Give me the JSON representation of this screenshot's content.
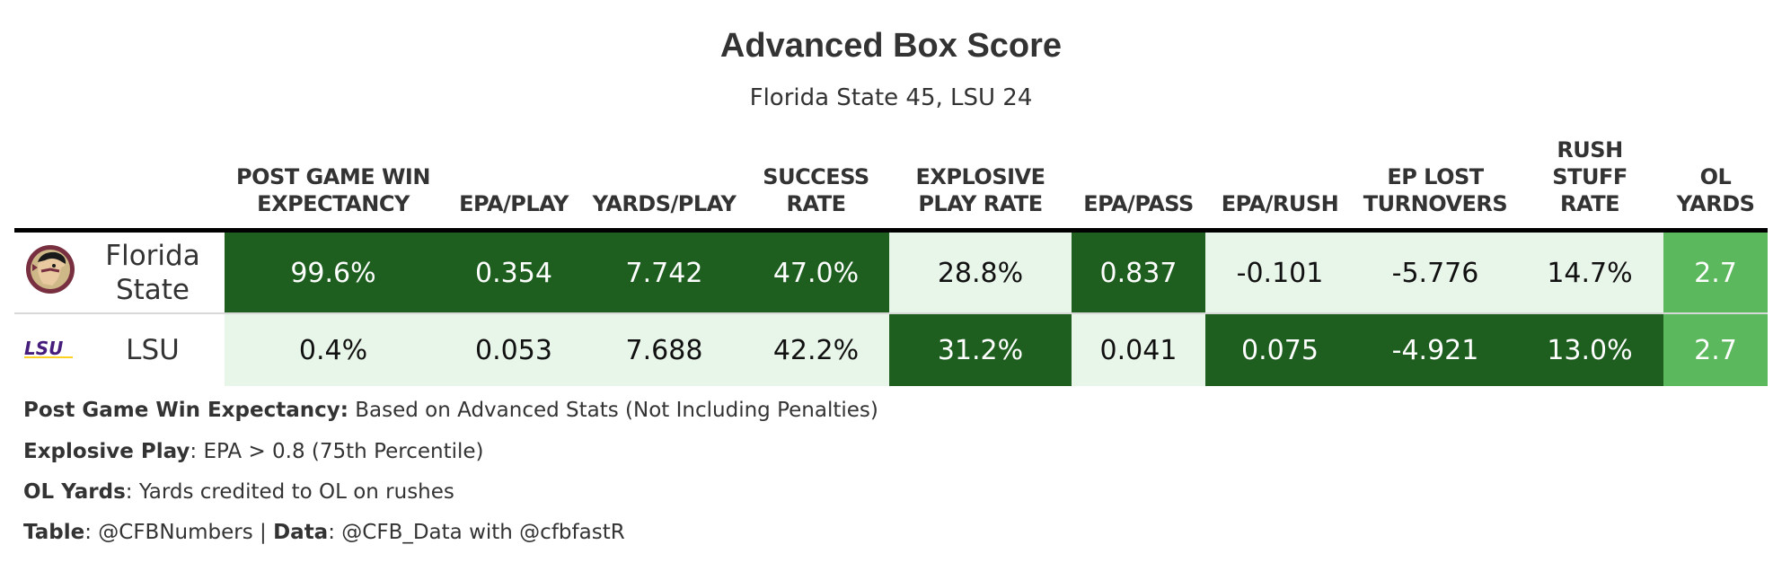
{
  "title": "Advanced Box Score",
  "subtitle": "Florida State 45, LSU 24",
  "chart_data": {
    "type": "table",
    "columns": [
      "POST GAME WIN\nEXPECTANCY",
      "EPA/PLAY",
      "YARDS/PLAY",
      "SUCCESS\nRATE",
      "EXPLOSIVE\nPLAY RATE",
      "EPA/PASS",
      "EPA/RUSH",
      "EP LOST\nTURNOVERS",
      "RUSH\nSTUFF\nRATE",
      "OL\nYARDS"
    ],
    "rows": [
      {
        "team": "Florida\nState",
        "logo": "fsu-seminole-head-logo",
        "values": [
          "99.6%",
          "0.354",
          "7.742",
          "47.0%",
          "28.8%",
          "0.837",
          "-0.101",
          "-5.776",
          "14.7%",
          "2.7"
        ],
        "shade": [
          "dark",
          "dark",
          "dark",
          "dark",
          "light",
          "dark",
          "light",
          "light",
          "light",
          "mid"
        ]
      },
      {
        "team": "LSU",
        "logo": "lsu-wordmark-logo",
        "values": [
          "0.4%",
          "0.053",
          "7.688",
          "42.2%",
          "31.2%",
          "0.041",
          "0.075",
          "-4.921",
          "13.0%",
          "2.7"
        ],
        "shade": [
          "light",
          "light",
          "light",
          "light",
          "dark",
          "light",
          "dark",
          "dark",
          "dark",
          "mid"
        ]
      }
    ],
    "colors": {
      "dark": "#1e5f20",
      "light": "#e8f5e9",
      "mid": "#5cb85c"
    }
  },
  "notes": [
    {
      "label": "Post Game Win Expectancy:",
      "text": " Based on Advanced Stats (Not Including Penalties)"
    },
    {
      "label": "Explosive Play",
      "text": ": EPA > 0.8 (75th Percentile)"
    },
    {
      "label": "OL Yards",
      "text": ": Yards credited to OL on rushes"
    }
  ],
  "credit": {
    "table_label": "Table",
    "table_text": ": @CFBNumbers | ",
    "data_label": "Data",
    "data_text": ": @CFB_Data with @cfbfastR"
  }
}
